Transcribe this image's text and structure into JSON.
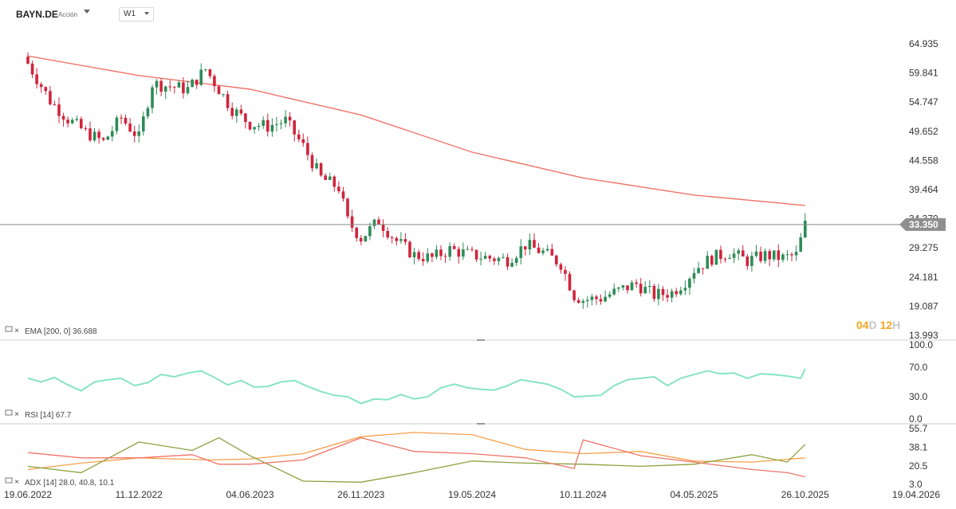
{
  "header": {
    "symbol": "BAYN.DE",
    "type_label": "Acción",
    "timeframe": "W1"
  },
  "countdown": {
    "days": "04",
    "days_unit": "D",
    "hours": "12",
    "hours_unit": "H"
  },
  "colors": {
    "up": "#2e8b57",
    "down": "#d0243c",
    "ema": "#f07468",
    "rsi": "#86e3c6",
    "adx": "#f5a04a",
    "plus_di": "#8aa23c",
    "minus_di": "#f07468",
    "price_line": "#888888",
    "price_label_bg": "#8f8f8f"
  },
  "chart_data": [
    {
      "type": "candlestick",
      "panel": "price",
      "x_ticks": [
        "19.06.2022",
        "11.12.2022",
        "04.06.2023",
        "26.11.2023",
        "19.05.2024",
        "10.11.2024",
        "04.05.2025",
        "26.10.2025",
        "19.04.2026"
      ],
      "y_ticks": [
        "64.935",
        "59.841",
        "54.747",
        "49.652",
        "44.558",
        "39.464",
        "34.370",
        "29.275",
        "24.181",
        "19.087",
        "13.993"
      ],
      "ylim": [
        13.993,
        64.935
      ],
      "current_price": "33.350",
      "ema_label": "EMA [200, 0] 36.688",
      "close_path": [
        [
          "19.06.2022",
          61.5
        ],
        [
          "24.07.2022",
          55.0
        ],
        [
          "21.08.2022",
          51.8
        ],
        [
          "18.09.2022",
          49.5
        ],
        [
          "16.10.2022",
          47.8
        ],
        [
          "13.11.2022",
          52.0
        ],
        [
          "11.12.2022",
          48.5
        ],
        [
          "01.01.2023",
          58.0
        ],
        [
          "29.01.2023",
          57.5
        ],
        [
          "26.02.2023",
          57.0
        ],
        [
          "26.03.2023",
          60.5
        ],
        [
          "16.04.2023",
          57.0
        ],
        [
          "07.05.2023",
          53.5
        ],
        [
          "04.06.2023",
          51.0
        ],
        [
          "02.07.2023",
          50.5
        ],
        [
          "30.07.2023",
          51.5
        ],
        [
          "27.08.2023",
          47.0
        ],
        [
          "24.09.2023",
          41.5
        ],
        [
          "22.10.2023",
          39.8
        ],
        [
          "05.11.2023",
          34.0
        ],
        [
          "26.11.2023",
          31.0
        ],
        [
          "24.12.2023",
          34.0
        ],
        [
          "21.01.2024",
          30.5
        ],
        [
          "18.02.2024",
          28.0
        ],
        [
          "17.03.2024",
          27.5
        ],
        [
          "14.04.2024",
          29.0
        ],
        [
          "19.05.2024",
          28.0
        ],
        [
          "16.06.2024",
          27.5
        ],
        [
          "14.07.2024",
          27.2
        ],
        [
          "11.08.2024",
          29.8
        ],
        [
          "08.09.2024",
          28.5
        ],
        [
          "06.10.2024",
          26.5
        ],
        [
          "27.10.2024",
          21.0
        ],
        [
          "10.11.2024",
          20.2
        ],
        [
          "08.12.2024",
          20.5
        ],
        [
          "05.01.2025",
          21.8
        ],
        [
          "02.02.2025",
          23.0
        ],
        [
          "02.03.2025",
          21.0
        ],
        [
          "30.03.2025",
          21.5
        ],
        [
          "20.04.2025",
          23.5
        ],
        [
          "04.05.2025",
          25.5
        ],
        [
          "01.06.2025",
          27.5
        ],
        [
          "29.06.2025",
          28.5
        ],
        [
          "27.07.2025",
          27.0
        ],
        [
          "24.08.2025",
          28.0
        ],
        [
          "21.09.2025",
          27.5
        ],
        [
          "12.10.2025",
          28.0
        ],
        [
          "26.10.2025",
          33.35
        ]
      ],
      "ema_path": [
        [
          "19.06.2022",
          62.8
        ],
        [
          "11.12.2022",
          59.4
        ],
        [
          "04.06.2023",
          57.0
        ],
        [
          "26.11.2023",
          52.5
        ],
        [
          "19.05.2024",
          46.0
        ],
        [
          "10.11.2024",
          41.5
        ],
        [
          "04.05.2025",
          38.5
        ],
        [
          "26.10.2025",
          36.688
        ]
      ]
    },
    {
      "type": "line",
      "panel": "rsi",
      "label": "RSI [14] 67.7",
      "y_ticks": [
        "100.0",
        "70.0",
        "30.0",
        "0.0"
      ],
      "ylim": [
        0,
        100
      ],
      "series": [
        {
          "values": [
            [
              "19.06.2022",
              55
            ],
            [
              "10.07.2022",
              50
            ],
            [
              "31.07.2022",
              56
            ],
            [
              "21.08.2022",
              46
            ],
            [
              "11.09.2022",
              38
            ],
            [
              "02.10.2022",
              50
            ],
            [
              "23.10.2022",
              53
            ],
            [
              "13.11.2022",
              55
            ],
            [
              "04.12.2022",
              45
            ],
            [
              "25.12.2022",
              49
            ],
            [
              "15.01.2023",
              60
            ],
            [
              "05.02.2023",
              57
            ],
            [
              "26.02.2023",
              62
            ],
            [
              "19.03.2023",
              65
            ],
            [
              "09.04.2023",
              56
            ],
            [
              "30.04.2023",
              46
            ],
            [
              "21.05.2023",
              52
            ],
            [
              "11.06.2023",
              43
            ],
            [
              "02.07.2023",
              44
            ],
            [
              "23.07.2023",
              50
            ],
            [
              "13.08.2023",
              52
            ],
            [
              "03.09.2023",
              44
            ],
            [
              "24.09.2023",
              37
            ],
            [
              "15.10.2023",
              32
            ],
            [
              "05.11.2023",
              30
            ],
            [
              "26.11.2023",
              21
            ],
            [
              "17.12.2023",
              27
            ],
            [
              "07.01.2024",
              26
            ],
            [
              "28.01.2024",
              33
            ],
            [
              "18.02.2024",
              27
            ],
            [
              "10.03.2024",
              30
            ],
            [
              "31.03.2024",
              42
            ],
            [
              "21.04.2024",
              47
            ],
            [
              "12.05.2024",
              42
            ],
            [
              "02.06.2024",
              40
            ],
            [
              "23.06.2024",
              39
            ],
            [
              "14.07.2024",
              45
            ],
            [
              "04.08.2024",
              53
            ],
            [
              "25.08.2024",
              50
            ],
            [
              "15.09.2024",
              47
            ],
            [
              "06.10.2024",
              40
            ],
            [
              "27.10.2024",
              30
            ],
            [
              "17.11.2024",
              31
            ],
            [
              "08.12.2024",
              32
            ],
            [
              "29.12.2024",
              45
            ],
            [
              "19.01.2025",
              53
            ],
            [
              "09.02.2025",
              55
            ],
            [
              "02.03.2025",
              57
            ],
            [
              "23.03.2025",
              45
            ],
            [
              "13.04.2025",
              55
            ],
            [
              "04.05.2025",
              60
            ],
            [
              "25.05.2025",
              65
            ],
            [
              "15.06.2025",
              61
            ],
            [
              "06.07.2025",
              62
            ],
            [
              "27.07.2025",
              55
            ],
            [
              "17.08.2025",
              61
            ],
            [
              "07.09.2025",
              60
            ],
            [
              "28.09.2025",
              58
            ],
            [
              "19.10.2025",
              55
            ],
            [
              "26.10.2025",
              67.7
            ]
          ]
        }
      ]
    },
    {
      "type": "line",
      "panel": "adx",
      "label": "ADX [14] 28.0, 40.8, 10.1",
      "y_ticks": [
        "55.7",
        "38.1",
        "20.5",
        "3.0"
      ],
      "ylim": [
        3.0,
        55.7
      ],
      "series": [
        {
          "values": [
            [
              "19.06.2022",
              17
            ],
            [
              "11.09.2022",
              23
            ],
            [
              "11.12.2022",
              28
            ],
            [
              "02.04.2023",
              26
            ],
            [
              "04.06.2023",
              27
            ],
            [
              "27.08.2023",
              32
            ],
            [
              "26.11.2023",
              48
            ],
            [
              "18.02.2024",
              52
            ],
            [
              "19.05.2024",
              50
            ],
            [
              "11.08.2024",
              36
            ],
            [
              "10.11.2024",
              32
            ],
            [
              "09.02.2025",
              34
            ],
            [
              "04.05.2025",
              25
            ],
            [
              "03.08.2025",
              24
            ],
            [
              "26.10.2025",
              28
            ]
          ]
        },
        {
          "values": [
            [
              "19.06.2022",
              20
            ],
            [
              "11.09.2022",
              14
            ],
            [
              "11.12.2022",
              43
            ],
            [
              "05.03.2023",
              35
            ],
            [
              "16.04.2023",
              47
            ],
            [
              "04.06.2023",
              30
            ],
            [
              "27.08.2023",
              6
            ],
            [
              "26.11.2023",
              5
            ],
            [
              "18.02.2024",
              14
            ],
            [
              "19.05.2024",
              25
            ],
            [
              "11.08.2024",
              23
            ],
            [
              "10.11.2024",
              22
            ],
            [
              "09.02.2025",
              20
            ],
            [
              "04.05.2025",
              22
            ],
            [
              "03.08.2025",
              31
            ],
            [
              "28.09.2025",
              24
            ],
            [
              "26.10.2025",
              40.8
            ]
          ]
        },
        {
          "values": [
            [
              "19.06.2022",
              33
            ],
            [
              "11.09.2022",
              28
            ],
            [
              "11.12.2022",
              28
            ],
            [
              "05.03.2023",
              31
            ],
            [
              "16.04.2023",
              22
            ],
            [
              "04.06.2023",
              22
            ],
            [
              "27.08.2023",
              26
            ],
            [
              "26.11.2023",
              47
            ],
            [
              "18.02.2024",
              34
            ],
            [
              "19.05.2024",
              32
            ],
            [
              "11.08.2024",
              28
            ],
            [
              "27.10.2024",
              18
            ],
            [
              "10.11.2024",
              45
            ],
            [
              "09.02.2025",
              30
            ],
            [
              "04.05.2025",
              24
            ],
            [
              "03.08.2025",
              17
            ],
            [
              "28.09.2025",
              14
            ],
            [
              "26.10.2025",
              10.1
            ]
          ]
        }
      ]
    }
  ]
}
